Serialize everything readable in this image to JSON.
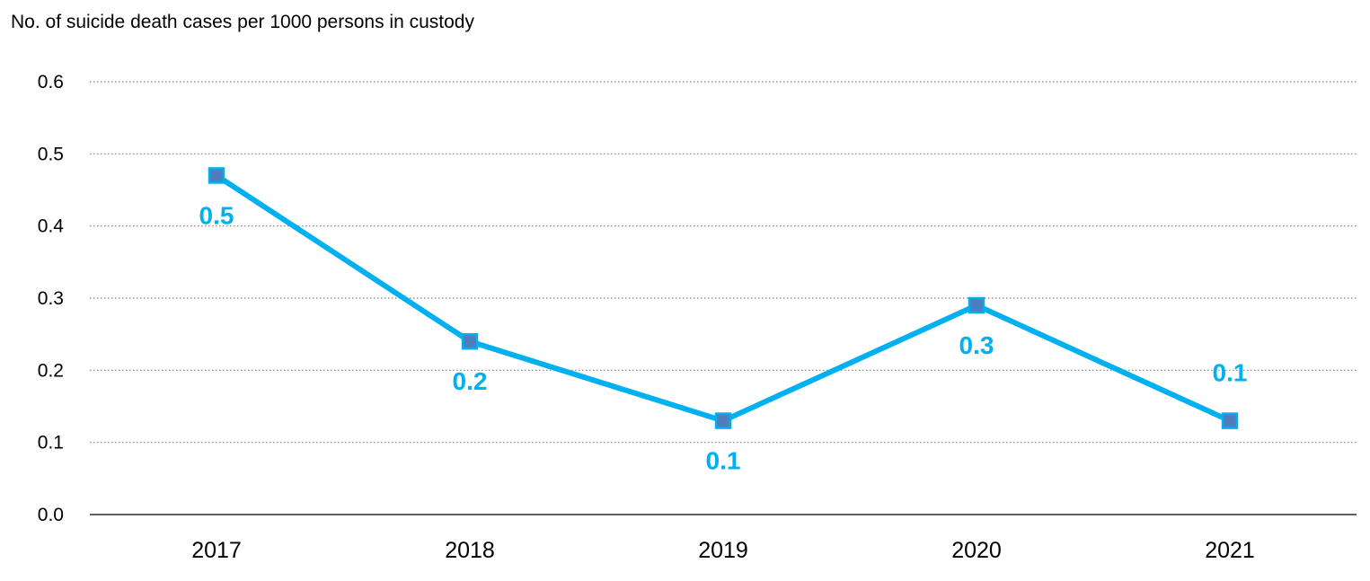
{
  "chart_data": {
    "type": "line",
    "title": "",
    "ylabel": "No. of suicide death cases per 1000 persons in custody",
    "xlabel": "",
    "categories": [
      "2017",
      "2018",
      "2019",
      "2020",
      "2021"
    ],
    "series": [
      {
        "values": [
          0.47,
          0.24,
          0.13,
          0.29,
          0.13
        ],
        "data_labels": [
          "0.5",
          "0.2",
          "0.1",
          "0.3",
          "0.1"
        ],
        "color": "#00b0f0",
        "marker_color": "#4f7ec0"
      }
    ],
    "ylim": [
      0,
      0.6
    ],
    "yticks": [
      "0.0",
      "0.1",
      "0.2",
      "0.3",
      "0.4",
      "0.5",
      "0.6"
    ],
    "grid": true,
    "grid_style": "dotted",
    "legend": "none"
  }
}
